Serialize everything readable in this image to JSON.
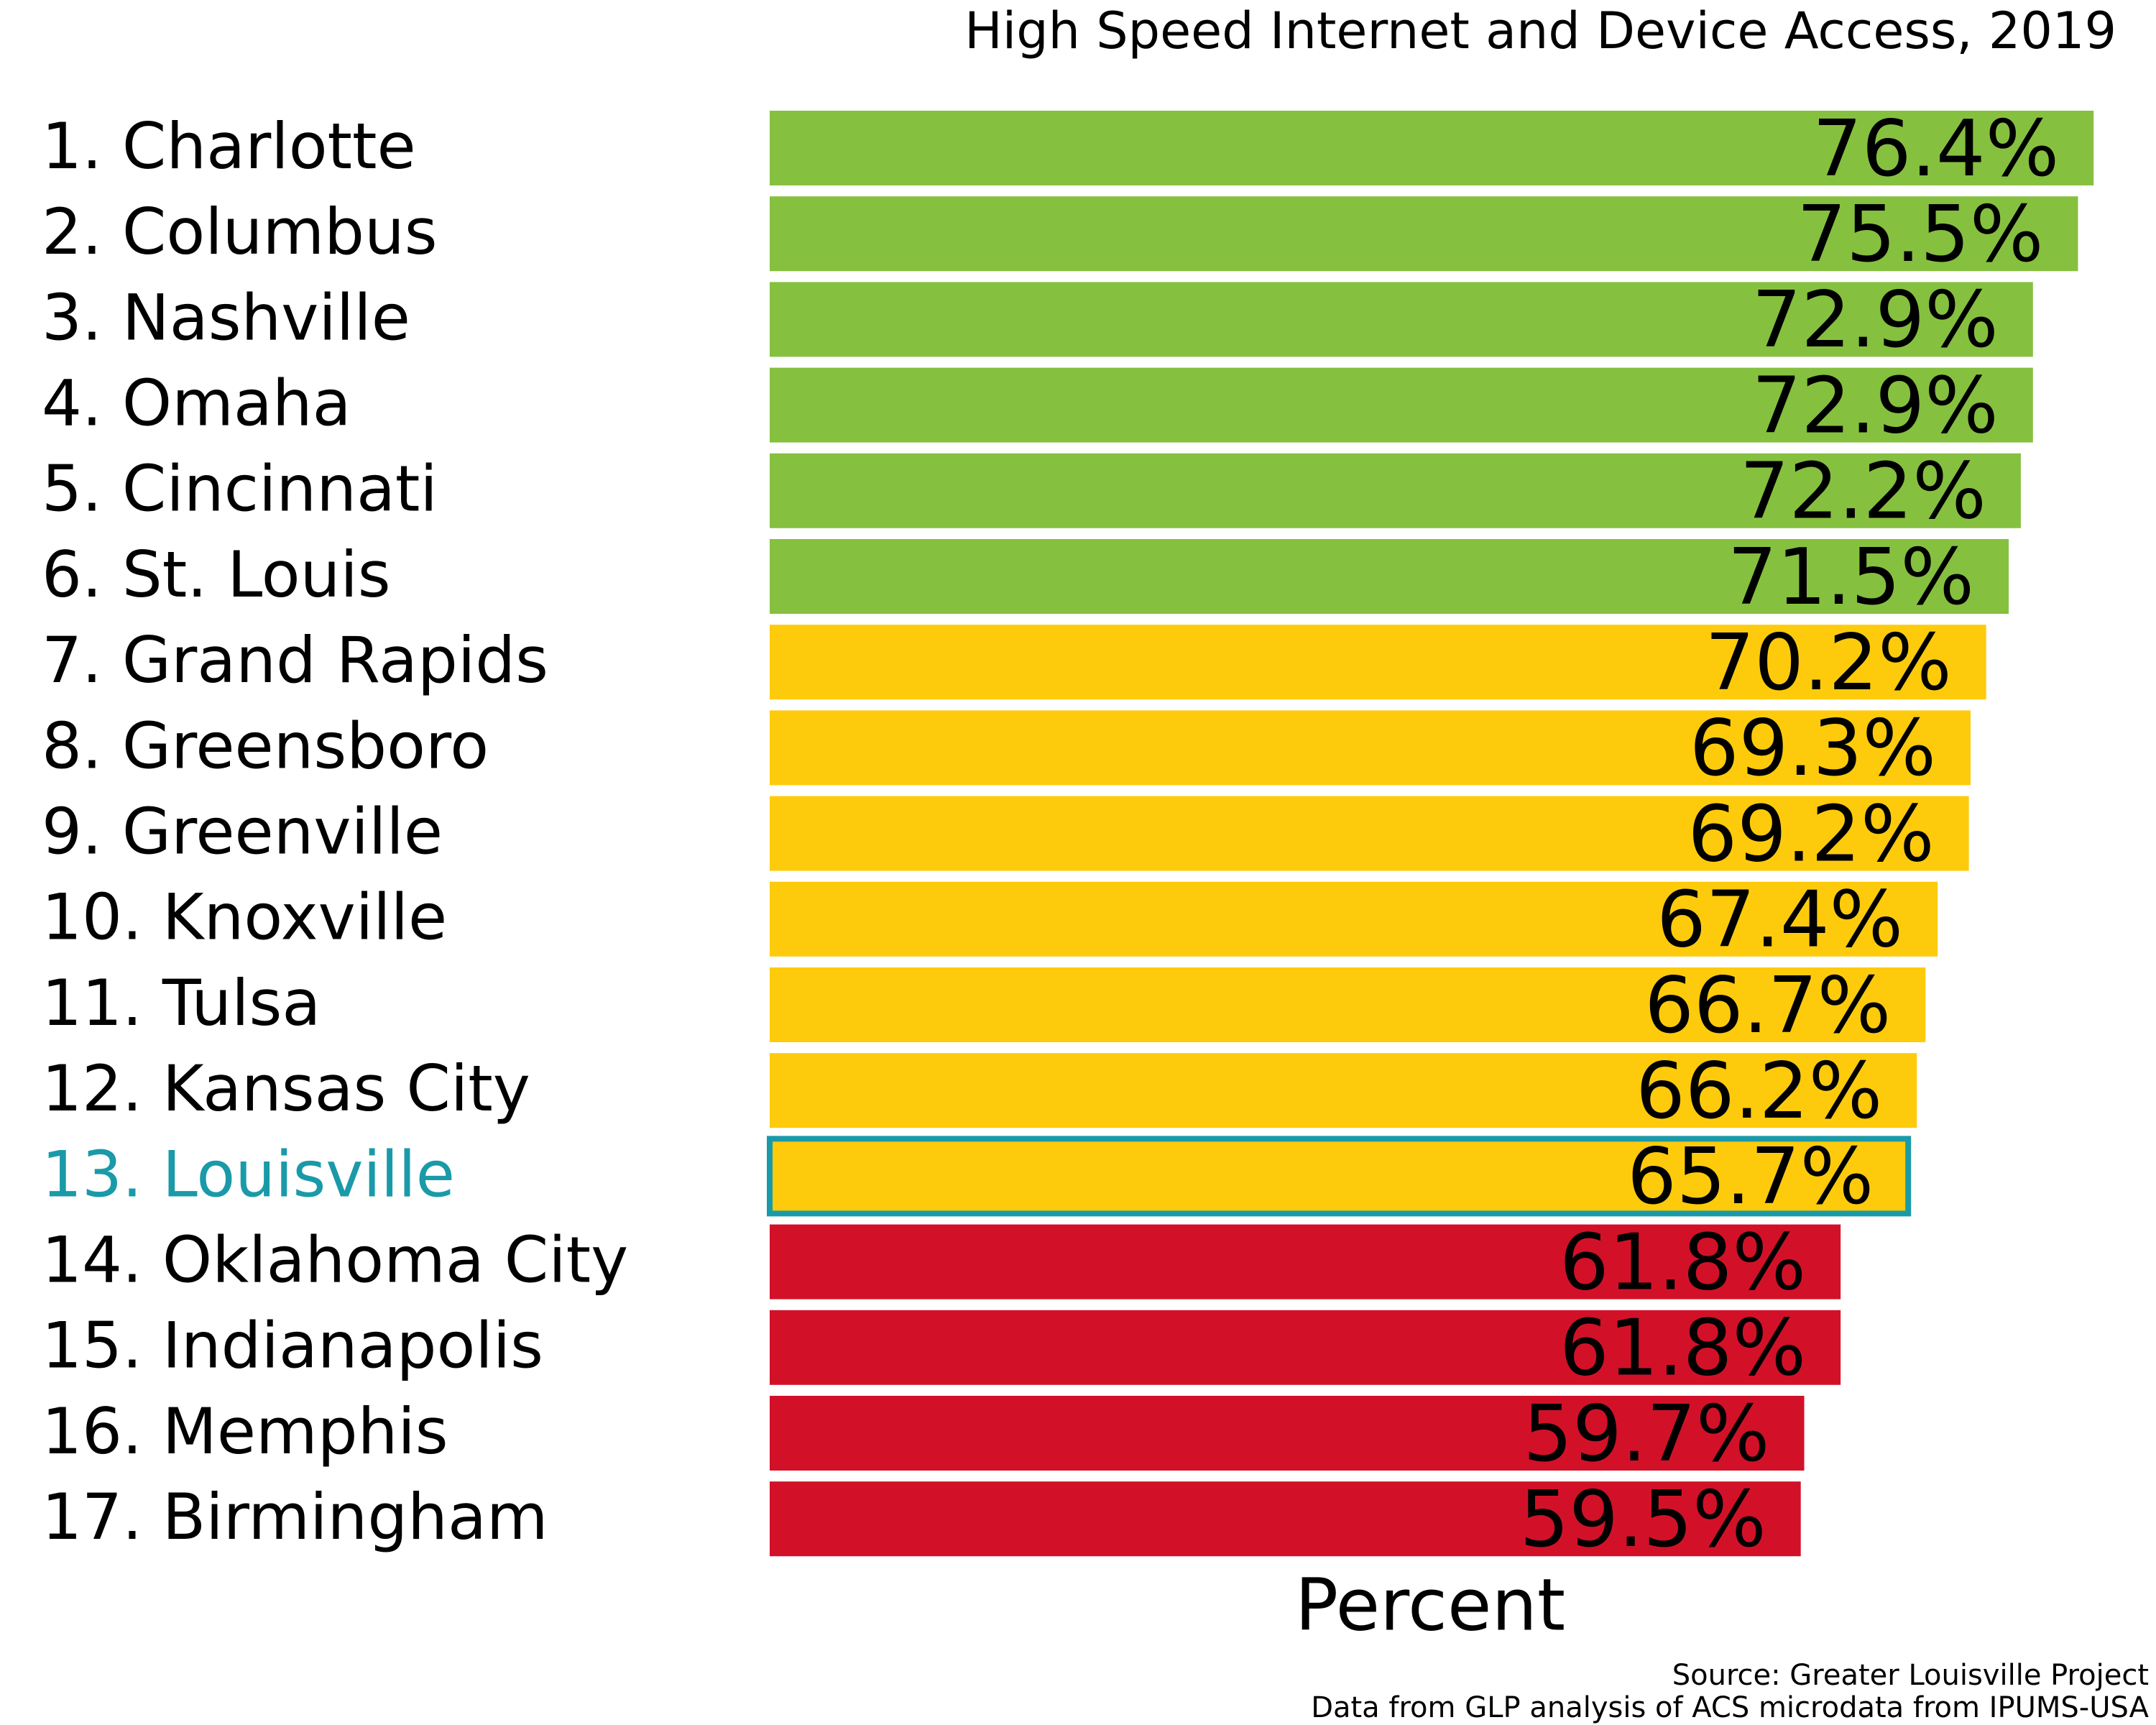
{
  "chart_data": {
    "type": "hbar",
    "title": "High Speed Internet and Device Access, 2019",
    "x_label": "Percent",
    "annotations": [
      "Source: Greater Louisville Project",
      "Data from GLP analysis of ACS microdata from IPUMS-USA"
    ],
    "categories": [
      "1. Charlotte",
      "2. Columbus",
      "3. Nashville",
      "4. Omaha",
      "5. Cincinnati",
      "6. St. Louis",
      "7. Grand Rapids",
      "8. Greensboro",
      "9. Greenville",
      "10. Knoxville",
      "11. Tulsa",
      "12. Kansas City",
      "13. Louisville",
      "14. Oklahoma City",
      "15. Indianapolis",
      "16. Memphis",
      "17. Birmingham"
    ],
    "values": [
      76.4,
      75.5,
      72.9,
      72.9,
      72.2,
      71.5,
      70.2,
      69.3,
      69.2,
      67.4,
      66.7,
      66.2,
      65.7,
      61.8,
      61.8,
      59.7,
      59.5
    ],
    "value_labels": [
      "76.4%",
      "75.5%",
      "72.9%",
      "72.9%",
      "72.2%",
      "71.5%",
      "70.2%",
      "69.3%",
      "69.2%",
      "67.4%",
      "66.7%",
      "66.2%",
      "65.7%",
      "61.8%",
      "61.8%",
      "59.7%",
      "59.5%"
    ],
    "colors": [
      "#86c03f",
      "#86c03f",
      "#86c03f",
      "#86c03f",
      "#86c03f",
      "#86c03f",
      "#fdcb0b",
      "#fdcb0b",
      "#fdcb0b",
      "#fdcb0b",
      "#fdcb0b",
      "#fdcb0b",
      "#fdcb0b",
      "#d21129",
      "#d21129",
      "#d21129",
      "#d21129"
    ],
    "highlight": {
      "index": 12,
      "color": "#1a9aa8"
    },
    "xlim": [
      0,
      80
    ]
  }
}
